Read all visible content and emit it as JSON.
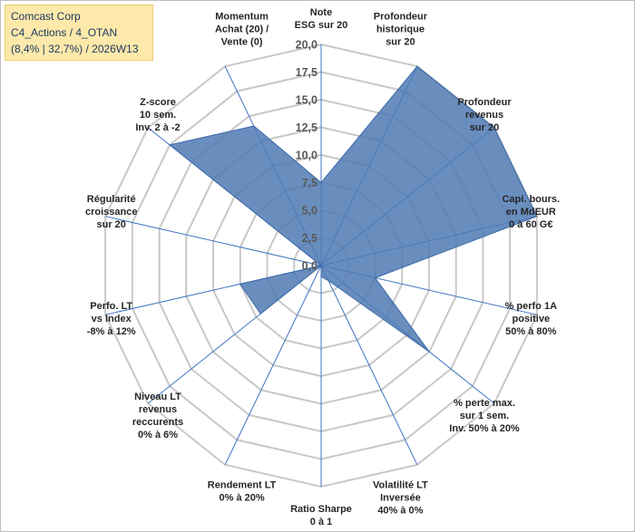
{
  "header": {
    "line1": "Comcast Corp",
    "line2": "C4_Actions / 4_OTAN",
    "line3": "(8,4% | 32,7%) / 2026W13"
  },
  "colors": {
    "fill": "#4f7ab3",
    "stroke": "#3b6aa8",
    "grid": "#c8c8c8",
    "spoke": "#3f74c4",
    "title_bg": "#fde9a9"
  },
  "chart_data": {
    "type": "radar",
    "title": "Comcast Corp",
    "r_range": [
      0,
      20
    ],
    "ticks": [
      "0,0",
      "2,5",
      "5,0",
      "7,5",
      "10,0",
      "12,5",
      "15,0",
      "17,5",
      "20,0"
    ],
    "axes": [
      {
        "label": [
          "Note",
          "ESG sur 20"
        ],
        "value": 7.5
      },
      {
        "label": [
          "Profondeur",
          "historique",
          "sur 20"
        ],
        "value": 20.0
      },
      {
        "label": [
          "Profondeur",
          "revenus",
          "sur 20"
        ],
        "value": 20.0
      },
      {
        "label": [
          "Capi. bours.",
          "en MdEUR",
          "0 à 60 G€"
        ],
        "value": 20.0
      },
      {
        "label": [
          "% perfo 1A",
          "positive",
          "50% à 80%"
        ],
        "value": 5.0
      },
      {
        "label": [
          "% perte max.",
          "sur 1 sem.",
          "Inv. 50% à 20%"
        ],
        "value": 12.5
      },
      {
        "label": [
          "Volatilité LT",
          "Inversée",
          "40% à 0%"
        ],
        "value": 1.5
      },
      {
        "label": [
          "Ratio Sharpe",
          "0 à 1"
        ],
        "value": 1.0
      },
      {
        "label": [
          "Rendement LT",
          "0% à 20%"
        ],
        "value": 0.0
      },
      {
        "label": [
          "Niveau LT",
          "revenus",
          "reccurents",
          "0% à 6%"
        ],
        "value": 7.0
      },
      {
        "label": [
          "Perfo. LT",
          "vs Index",
          "-8% à 12%"
        ],
        "value": 7.5
      },
      {
        "label": [
          "Régularité",
          "croissance",
          "sur 20"
        ],
        "value": 0.0
      },
      {
        "label": [
          "Z-score",
          "10 sem.",
          "Inv. 2 à -2"
        ],
        "value": 17.5
      },
      {
        "label": [
          "Momentum",
          "Achat (20) /",
          "Vente (0)"
        ],
        "value": 14.0
      }
    ]
  }
}
